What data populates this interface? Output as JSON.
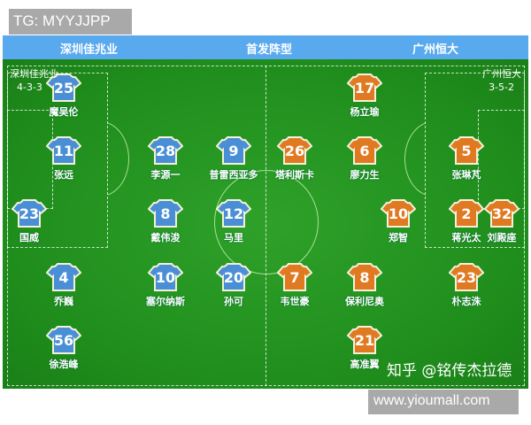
{
  "watermark_top": "TG: MYYJJPP",
  "watermark_bottom": "www.yioumall.com",
  "watermark_zhihu": "知乎 @铭传杰拉德",
  "header": {
    "home": "深圳佳兆业",
    "title": "首发阵型",
    "away": "广州恒大"
  },
  "home": {
    "name": "深圳佳兆业",
    "formation": "4-3-3",
    "color": "#4a8fd6",
    "players": [
      {
        "number": "25",
        "name": "魔吴伦"
      },
      {
        "number": "11",
        "name": "张远"
      },
      {
        "number": "28",
        "name": "李源一"
      },
      {
        "number": "9",
        "name": "普雷西亚多"
      },
      {
        "number": "23",
        "name": "国威"
      },
      {
        "number": "8",
        "name": "戴伟浚"
      },
      {
        "number": "12",
        "name": "马里"
      },
      {
        "number": "4",
        "name": "乔巍"
      },
      {
        "number": "10",
        "name": "塞尔纳斯"
      },
      {
        "number": "20",
        "name": "孙可"
      },
      {
        "number": "56",
        "name": "徐浩峰"
      }
    ]
  },
  "away": {
    "name": "广州恒大",
    "formation": "3-5-2",
    "color": "#e07a22",
    "players": [
      {
        "number": "17",
        "name": "杨立瑜"
      },
      {
        "number": "26",
        "name": "塔利斯卡"
      },
      {
        "number": "6",
        "name": "廖力生"
      },
      {
        "number": "5",
        "name": "张琳芃"
      },
      {
        "number": "10",
        "name": "郑智"
      },
      {
        "number": "2",
        "name": "蒋光太"
      },
      {
        "number": "32",
        "name": "刘殿座"
      },
      {
        "number": "7",
        "name": "韦世豪"
      },
      {
        "number": "8",
        "name": "保利尼奥"
      },
      {
        "number": "23",
        "name": "朴志洙"
      },
      {
        "number": "21",
        "name": "高准翼"
      }
    ]
  }
}
